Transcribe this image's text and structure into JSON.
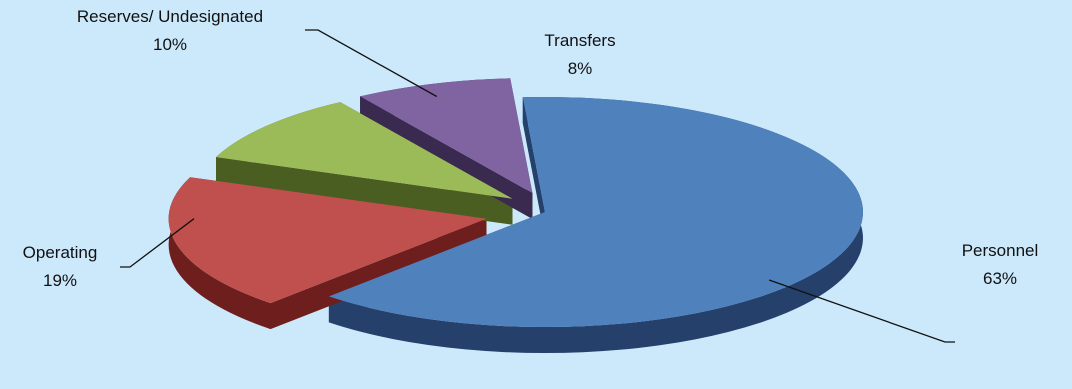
{
  "chart_data": {
    "type": "pie",
    "style": "3d-exploded",
    "slices": [
      {
        "name": "Personnel",
        "value": 63,
        "label": "63%",
        "color": "#4f81bd",
        "side": "#24406b"
      },
      {
        "name": "Operating",
        "value": 19,
        "label": "19%",
        "color": "#c0504d",
        "side": "#6e1e1c"
      },
      {
        "name": "Reserves/ Undesignated",
        "value": 10,
        "label": "10%",
        "color": "#9bbb59",
        "side": "#4b5e22"
      },
      {
        "name": "Transfers",
        "value": 8,
        "label": "8%",
        "color": "#8064a2",
        "side": "#3a2a4f"
      }
    ]
  }
}
